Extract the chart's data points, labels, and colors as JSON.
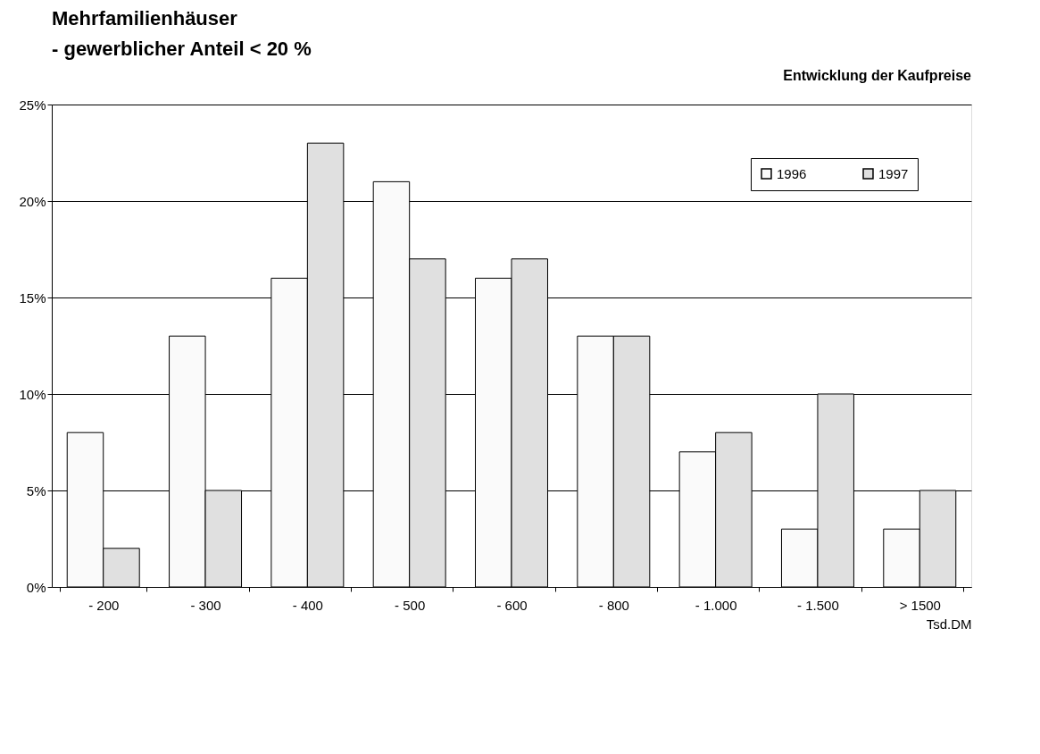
{
  "chart_data": {
    "type": "bar",
    "title": "Mehrfamilienhäuser",
    "subtitle": "- gewerblicher Anteil < 20 %",
    "annotations": [
      "Entwicklung der Kaufpreise"
    ],
    "xlabel": "Tsd.DM",
    "categories": [
      "- 200",
      "- 300",
      "- 400",
      "- 500",
      "- 600",
      "- 800",
      "- 1.000",
      "- 1.500",
      "> 1500"
    ],
    "series": [
      {
        "name": "1996",
        "color": "#fafafa",
        "values": [
          8,
          13,
          16,
          21,
          16,
          13,
          7,
          3,
          3
        ]
      },
      {
        "name": "1997",
        "color": "#e0e0e0",
        "values": [
          2,
          5,
          23,
          17,
          17,
          13,
          8,
          10,
          5
        ]
      }
    ],
    "ylim": [
      0,
      25
    ],
    "yticks": [
      {
        "value": 0,
        "label": "0%"
      },
      {
        "value": 5,
        "label": "5%"
      },
      {
        "value": 10,
        "label": "10%"
      },
      {
        "value": 15,
        "label": "15%"
      },
      {
        "value": 20,
        "label": "20%"
      },
      {
        "value": 25,
        "label": "25%"
      }
    ],
    "grid": "y",
    "legend": "top right"
  }
}
